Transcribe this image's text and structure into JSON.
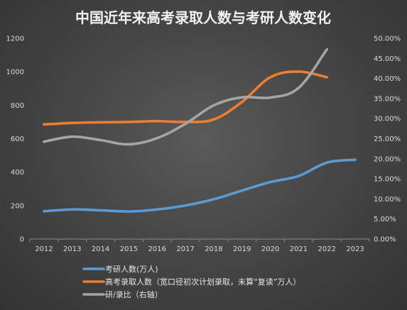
{
  "chart_data": {
    "type": "line",
    "title": "中国近年来高考录取人数与考研人数变化",
    "categories": [
      "2012",
      "2013",
      "2014",
      "2015",
      "2016",
      "2017",
      "2018",
      "2019",
      "2020",
      "2021",
      "2022",
      "2023"
    ],
    "y_left": {
      "lim": [
        0,
        1200
      ],
      "ticks": [
        "0",
        "200",
        "400",
        "600",
        "800",
        "1000",
        "1200"
      ]
    },
    "y_right": {
      "lim": [
        0,
        0.5
      ],
      "ticks": [
        "0.00%",
        "5.00%",
        "10.00%",
        "15.00%",
        "20.00%",
        "25.00%",
        "30.00%",
        "35.00%",
        "40.00%",
        "45.00%",
        "50.00%"
      ]
    },
    "grid": false,
    "legend_position": "bottom-left",
    "series": [
      {
        "name": "考研人数(万人)",
        "axis": "left",
        "color": "#5b9bd5",
        "values": [
          166,
          177,
          172,
          165,
          177,
          201,
          238,
          290,
          341,
          377,
          457,
          474
        ]
      },
      {
        "name": "高考录取人数（宽口径初次计划录取，未算“复读”万人）",
        "axis": "left",
        "color": "#ed7d31",
        "values": [
          685,
          694,
          698,
          700,
          705,
          700,
          715,
          820,
          967,
          1001,
          967,
          null
        ]
      },
      {
        "name": "研/录比（右轴）",
        "axis": "right",
        "color": "#a5a5a5",
        "values": [
          0.2425,
          0.255,
          0.2465,
          0.236,
          0.2515,
          0.287,
          0.333,
          0.353,
          0.3525,
          0.3766,
          0.4726,
          null
        ]
      }
    ]
  }
}
